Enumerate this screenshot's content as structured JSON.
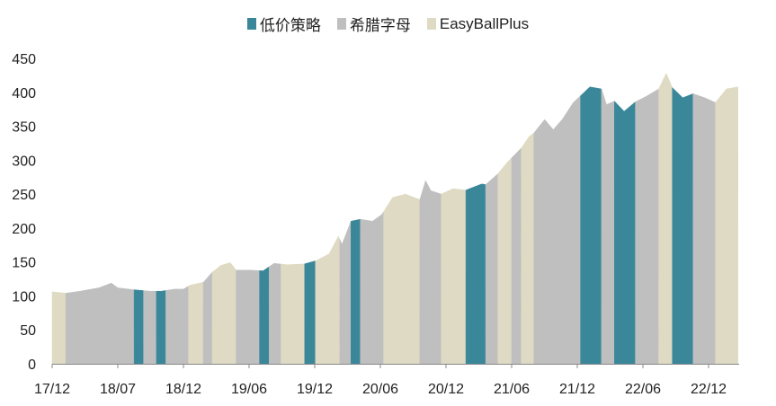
{
  "chart_data": {
    "type": "area",
    "title": "",
    "xlabel": "",
    "ylabel": "",
    "ylim": [
      0,
      450
    ],
    "yticks": [
      0,
      50,
      100,
      150,
      200,
      250,
      300,
      350,
      400,
      450
    ],
    "grid": false,
    "legend_position": "top",
    "xticks": [
      {
        "label": "17/12",
        "date": "2017-12-01"
      },
      {
        "label": "18/07",
        "date": "2018-07-01"
      },
      {
        "label": "18/12",
        "date": "2018-12-01"
      },
      {
        "label": "19/06",
        "date": "2019-06-01"
      },
      {
        "label": "19/12",
        "date": "2019-12-01"
      },
      {
        "label": "20/06",
        "date": "2020-06-01"
      },
      {
        "label": "20/12",
        "date": "2020-12-01"
      },
      {
        "label": "21/06",
        "date": "2021-06-01"
      },
      {
        "label": "21/12",
        "date": "2021-12-01"
      },
      {
        "label": "22/06",
        "date": "2022-06-01"
      },
      {
        "label": "22/12",
        "date": "2022-12-01"
      }
    ],
    "series_names": [
      {
        "key": "low",
        "name": "低价策略",
        "color": "#3b879a"
      },
      {
        "key": "greek",
        "name": "希腊字母",
        "color": "#bfbfbf"
      },
      {
        "key": "ebp",
        "name": "EasyBallPlus",
        "color": "#dfdac3"
      }
    ],
    "values": [
      [
        "2017-12-01",
        106
      ],
      [
        "2018-01-14",
        104
      ],
      [
        "2018-03-01",
        107
      ],
      [
        "2018-05-01",
        112
      ],
      [
        "2018-06-10",
        119
      ],
      [
        "2018-07-01",
        112
      ],
      [
        "2018-08-08",
        109
      ],
      [
        "2018-09-15",
        107
      ],
      [
        "2018-10-10",
        107
      ],
      [
        "2018-11-10",
        110
      ],
      [
        "2018-12-01",
        110
      ],
      [
        "2018-12-20",
        116
      ],
      [
        "2019-01-25",
        120
      ],
      [
        "2019-02-19",
        135
      ],
      [
        "2019-03-15",
        145
      ],
      [
        "2019-04-10",
        149
      ],
      [
        "2019-04-26",
        138
      ],
      [
        "2019-06-01",
        138
      ],
      [
        "2019-07-10",
        137
      ],
      [
        "2019-08-10",
        148
      ],
      [
        "2019-09-15",
        146
      ],
      [
        "2019-11-01",
        147
      ],
      [
        "2019-12-05",
        152
      ],
      [
        "2020-01-10",
        162
      ],
      [
        "2020-02-05",
        188
      ],
      [
        "2020-02-15",
        176
      ],
      [
        "2020-03-11",
        210
      ],
      [
        "2020-04-06",
        213
      ],
      [
        "2020-05-10",
        210
      ],
      [
        "2020-06-05",
        220
      ],
      [
        "2020-07-05",
        245
      ],
      [
        "2020-08-10",
        250
      ],
      [
        "2020-09-19",
        242
      ],
      [
        "2020-10-05",
        270
      ],
      [
        "2020-10-20",
        255
      ],
      [
        "2020-11-18",
        250
      ],
      [
        "2020-12-20",
        258
      ],
      [
        "2021-01-25",
        256
      ],
      [
        "2021-03-10",
        265
      ],
      [
        "2021-03-21",
        264
      ],
      [
        "2021-04-24",
        280
      ],
      [
        "2021-05-20",
        297
      ],
      [
        "2021-06-28",
        318
      ],
      [
        "2021-07-20",
        335
      ],
      [
        "2021-08-02",
        340
      ],
      [
        "2021-09-01",
        360
      ],
      [
        "2021-09-25",
        345
      ],
      [
        "2021-10-20",
        360
      ],
      [
        "2021-11-20",
        385
      ],
      [
        "2021-12-10",
        395
      ],
      [
        "2022-01-05",
        408
      ],
      [
        "2022-02-06",
        405
      ],
      [
        "2022-02-20",
        382
      ],
      [
        "2022-03-14",
        387
      ],
      [
        "2022-04-10",
        372
      ],
      [
        "2022-05-11",
        386
      ],
      [
        "2022-06-10",
        394
      ],
      [
        "2022-07-15",
        405
      ],
      [
        "2022-08-05",
        428
      ],
      [
        "2022-08-22",
        407
      ],
      [
        "2022-09-20",
        392
      ],
      [
        "2022-10-19",
        398
      ],
      [
        "2022-11-20",
        392
      ],
      [
        "2022-12-20",
        385
      ],
      [
        "2023-01-20",
        405
      ],
      [
        "2023-02-21",
        408
      ]
    ],
    "regimes": [
      {
        "start": "2017-12-01",
        "end": "2018-01-14",
        "strategy": "ebp"
      },
      {
        "start": "2018-01-14",
        "end": "2018-08-08",
        "strategy": "greek"
      },
      {
        "start": "2018-08-08",
        "end": "2018-08-30",
        "strategy": "low"
      },
      {
        "start": "2018-08-30",
        "end": "2018-09-29",
        "strategy": "greek"
      },
      {
        "start": "2018-09-29",
        "end": "2018-10-21",
        "strategy": "low"
      },
      {
        "start": "2018-10-21",
        "end": "2018-12-15",
        "strategy": "greek"
      },
      {
        "start": "2018-12-15",
        "end": "2019-01-25",
        "strategy": "ebp"
      },
      {
        "start": "2019-01-25",
        "end": "2019-02-19",
        "strategy": "greek"
      },
      {
        "start": "2019-02-19",
        "end": "2019-04-26",
        "strategy": "ebp"
      },
      {
        "start": "2019-04-26",
        "end": "2019-06-30",
        "strategy": "greek"
      },
      {
        "start": "2019-06-30",
        "end": "2019-07-27",
        "strategy": "low"
      },
      {
        "start": "2019-07-27",
        "end": "2019-08-29",
        "strategy": "greek"
      },
      {
        "start": "2019-08-29",
        "end": "2019-11-03",
        "strategy": "ebp"
      },
      {
        "start": "2019-11-03",
        "end": "2019-12-03",
        "strategy": "low"
      },
      {
        "start": "2019-12-03",
        "end": "2020-02-09",
        "strategy": "ebp"
      },
      {
        "start": "2020-02-09",
        "end": "2020-03-11",
        "strategy": "greek"
      },
      {
        "start": "2020-03-11",
        "end": "2020-04-06",
        "strategy": "low"
      },
      {
        "start": "2020-04-06",
        "end": "2020-06-10",
        "strategy": "greek"
      },
      {
        "start": "2020-06-10",
        "end": "2020-09-19",
        "strategy": "ebp"
      },
      {
        "start": "2020-09-19",
        "end": "2020-11-18",
        "strategy": "greek"
      },
      {
        "start": "2020-11-18",
        "end": "2021-01-25",
        "strategy": "ebp"
      },
      {
        "start": "2021-01-25",
        "end": "2021-03-21",
        "strategy": "low"
      },
      {
        "start": "2021-03-21",
        "end": "2021-04-24",
        "strategy": "greek"
      },
      {
        "start": "2021-04-24",
        "end": "2021-06-01",
        "strategy": "ebp"
      },
      {
        "start": "2021-06-01",
        "end": "2021-06-28",
        "strategy": "greek"
      },
      {
        "start": "2021-06-28",
        "end": "2021-08-02",
        "strategy": "ebp"
      },
      {
        "start": "2021-08-02",
        "end": "2021-12-10",
        "strategy": "greek"
      },
      {
        "start": "2021-12-10",
        "end": "2022-02-06",
        "strategy": "low"
      },
      {
        "start": "2022-02-06",
        "end": "2022-03-14",
        "strategy": "greek"
      },
      {
        "start": "2022-03-14",
        "end": "2022-05-11",
        "strategy": "low"
      },
      {
        "start": "2022-05-11",
        "end": "2022-07-15",
        "strategy": "greek"
      },
      {
        "start": "2022-07-15",
        "end": "2022-08-22",
        "strategy": "ebp"
      },
      {
        "start": "2022-08-22",
        "end": "2022-10-19",
        "strategy": "low"
      },
      {
        "start": "2022-10-19",
        "end": "2022-12-20",
        "strategy": "greek"
      },
      {
        "start": "2022-12-20",
        "end": "2023-02-21",
        "strategy": "ebp"
      }
    ]
  }
}
